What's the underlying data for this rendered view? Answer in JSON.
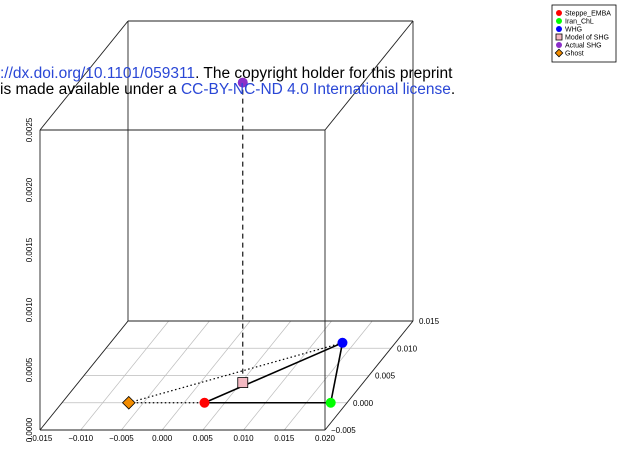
{
  "chart_data": {
    "type": "scatter",
    "x_ticks": [
      "−0.015",
      "−0.010",
      "−0.005",
      "0.000",
      "0.005",
      "0.010",
      "0.015",
      "0.020"
    ],
    "y_ticks": [
      "−0.005",
      "0.000",
      "0.005",
      "0.010",
      "0.015"
    ],
    "z_ticks": [
      "0.0000",
      "0.0005",
      "0.0010",
      "0.0015",
      "0.0020",
      "0.0025"
    ],
    "xlim": [
      -0.015,
      0.02
    ],
    "ylim": [
      -0.005,
      0.015
    ],
    "zlim": [
      0,
      0.0025
    ],
    "points": [
      {
        "name": "Steppe_EMBA",
        "x": 0.0025,
        "y": 0.0,
        "z": 0.0,
        "color": "#ff0000",
        "shape": "circle"
      },
      {
        "name": "Iran_ChL",
        "x": 0.018,
        "y": 0.0,
        "z": 0.0,
        "color": "#00ff00",
        "shape": "circle"
      },
      {
        "name": "WHG",
        "x": 0.0135,
        "y": 0.011,
        "z": 0.0,
        "color": "#0000ff",
        "shape": "circle"
      },
      {
        "name": "Model of SHG",
        "x": 0.0052,
        "y": 0.0037,
        "z": 0.0,
        "color": "#f4b9c2",
        "shape": "square"
      },
      {
        "name": "Actual SHG",
        "x": 0.0052,
        "y": 0.0037,
        "z": 0.0025,
        "color": "#8b2fc9",
        "shape": "circle"
      },
      {
        "name": "Ghost",
        "x": -0.0068,
        "y": 0.0,
        "z": 0.0,
        "color": "#f28c00",
        "shape": "diamond"
      }
    ],
    "legend_position": "top-right",
    "grid": true
  },
  "watermark": {
    "line1_link": "://dx.doi.org/10.1101/059311",
    "line1_text": ". The copyright holder for this preprint",
    "line2_text": "is made available under a ",
    "line2_link": "CC-BY-NC-ND 4.0 International license",
    "line2_end": "."
  }
}
